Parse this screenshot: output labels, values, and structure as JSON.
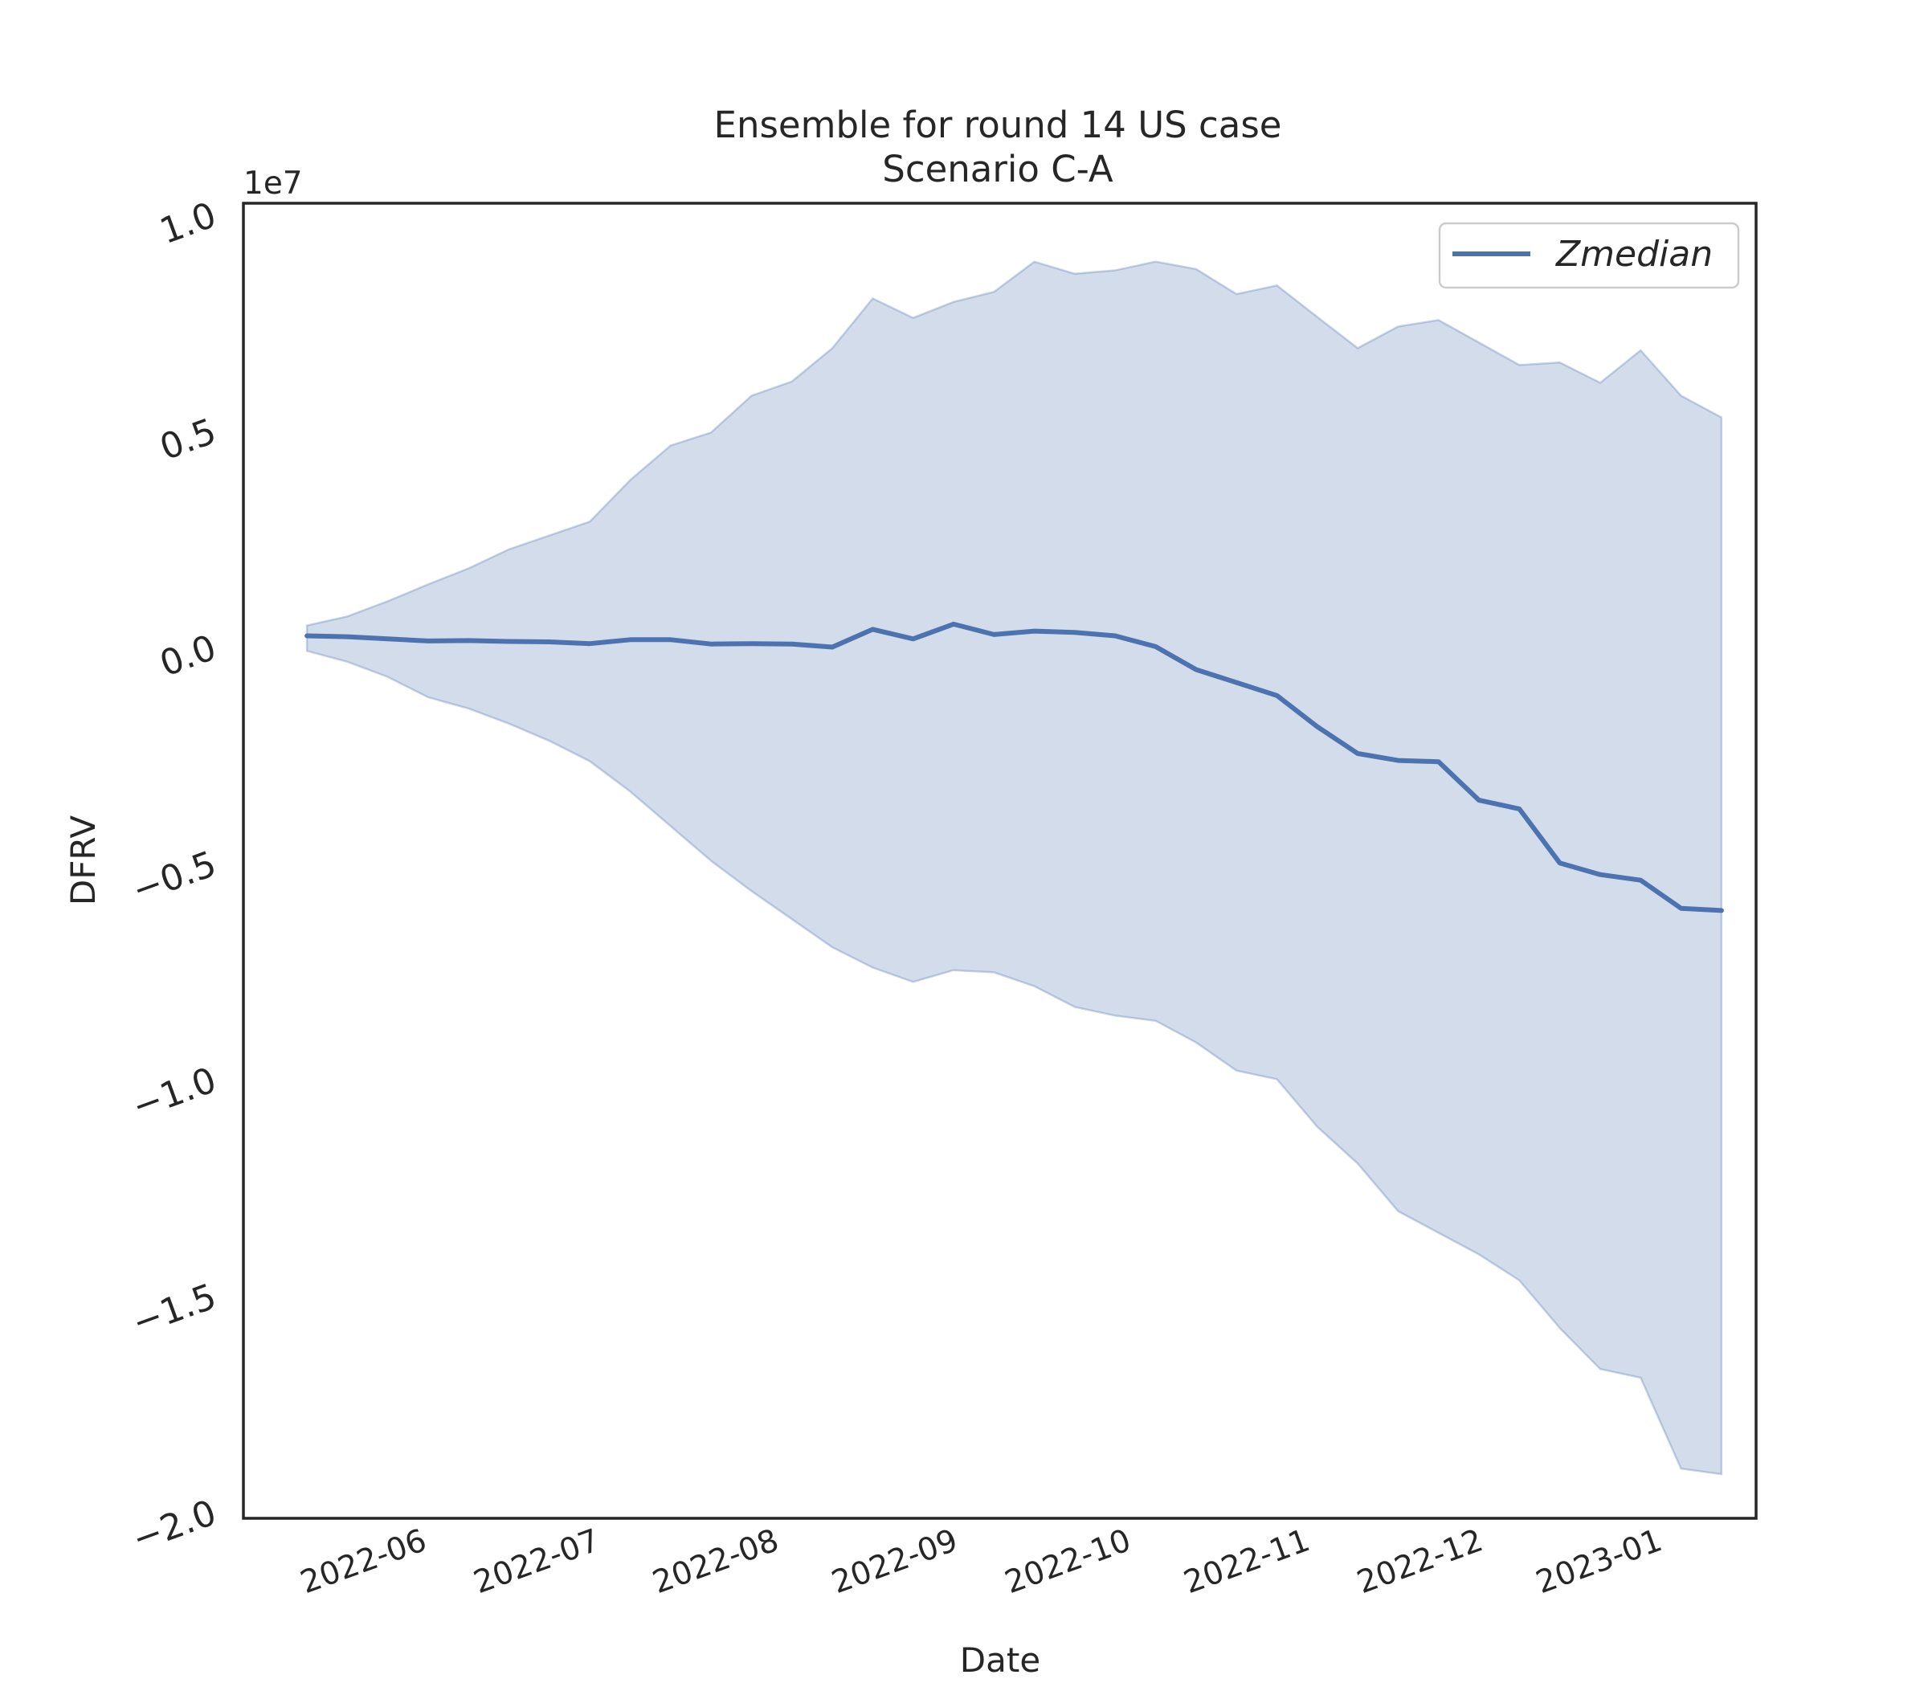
{
  "chart_data": {
    "type": "area",
    "title": "Ensemble for round 14 US case",
    "subtitle": "Scenario C-A",
    "xlabel": "Date",
    "ylabel": "DFRV",
    "y_offset_label": "1e7",
    "xlim": [
      "2022-05-03",
      "2023-01-20"
    ],
    "ylim": [
      -2.02,
      1.02
    ],
    "y_ticks": [
      1.0,
      0.5,
      0.0,
      -0.5,
      -1.0,
      -1.5,
      -2.0
    ],
    "y_tick_labels": [
      "1.0",
      "0.5",
      "0.0",
      "−0.5",
      "−1.0",
      "−1.5",
      "−2.0"
    ],
    "x_ticks": [
      "2022-06-01",
      "2022-07-01",
      "2022-08-01",
      "2022-09-01",
      "2022-10-01",
      "2022-11-01",
      "2022-12-01",
      "2023-01-01"
    ],
    "x_tick_labels": [
      "2022-06",
      "2022-07",
      "2022-08",
      "2022-09",
      "2022-10",
      "2022-11",
      "2022-12",
      "2023-01"
    ],
    "grid": false,
    "legend_position": "top-right",
    "colors": {
      "line": "#4c72b0",
      "band": "#4c72b0",
      "band_opacity": 0.25,
      "axes": "#262626"
    },
    "x": [
      "2022-05-14",
      "2022-05-21",
      "2022-05-28",
      "2022-06-04",
      "2022-06-11",
      "2022-06-18",
      "2022-06-25",
      "2022-07-02",
      "2022-07-09",
      "2022-07-16",
      "2022-07-23",
      "2022-07-30",
      "2022-08-06",
      "2022-08-13",
      "2022-08-20",
      "2022-08-27",
      "2022-09-03",
      "2022-09-10",
      "2022-09-17",
      "2022-09-24",
      "2022-10-01",
      "2022-10-08",
      "2022-10-15",
      "2022-10-22",
      "2022-10-29",
      "2022-11-05",
      "2022-11-12",
      "2022-11-19",
      "2022-11-26",
      "2022-12-03",
      "2022-12-10",
      "2022-12-17",
      "2022-12-24",
      "2022-12-31",
      "2023-01-07",
      "2023-01-14"
    ],
    "series": [
      {
        "name": "Zmedian",
        "values": [
          0.02,
          0.018,
          0.013,
          0.008,
          0.009,
          0.007,
          0.006,
          0.002,
          0.011,
          0.011,
          0.001,
          0.002,
          0.001,
          -0.006,
          0.035,
          0.013,
          0.047,
          0.023,
          0.031,
          0.028,
          0.02,
          -0.005,
          -0.058,
          -0.088,
          -0.118,
          -0.19,
          -0.252,
          -0.268,
          -0.271,
          -0.36,
          -0.38,
          -0.505,
          -0.532,
          -0.545,
          -0.61,
          -0.615
        ]
      }
    ],
    "band": {
      "upper": [
        0.044,
        0.065,
        0.1,
        0.139,
        0.176,
        0.22,
        0.252,
        0.284,
        0.38,
        0.46,
        0.49,
        0.575,
        0.608,
        0.685,
        0.8,
        0.755,
        0.792,
        0.815,
        0.885,
        0.857,
        0.865,
        0.885,
        0.868,
        0.81,
        0.83,
        0.757,
        0.685,
        0.735,
        0.75,
        0.698,
        0.646,
        0.652,
        0.605,
        0.68,
        0.575,
        0.525
      ],
      "lower": [
        -0.015,
        -0.04,
        -0.075,
        -0.122,
        -0.148,
        -0.183,
        -0.223,
        -0.27,
        -0.34,
        -0.42,
        -0.5,
        -0.57,
        -0.635,
        -0.7,
        -0.747,
        -0.78,
        -0.753,
        -0.758,
        -0.79,
        -0.838,
        -0.858,
        -0.87,
        -0.92,
        -0.985,
        -1.005,
        -1.115,
        -1.2,
        -1.31,
        -1.36,
        -1.41,
        -1.47,
        -1.58,
        -1.675,
        -1.695,
        -1.905,
        -1.918
      ]
    }
  }
}
